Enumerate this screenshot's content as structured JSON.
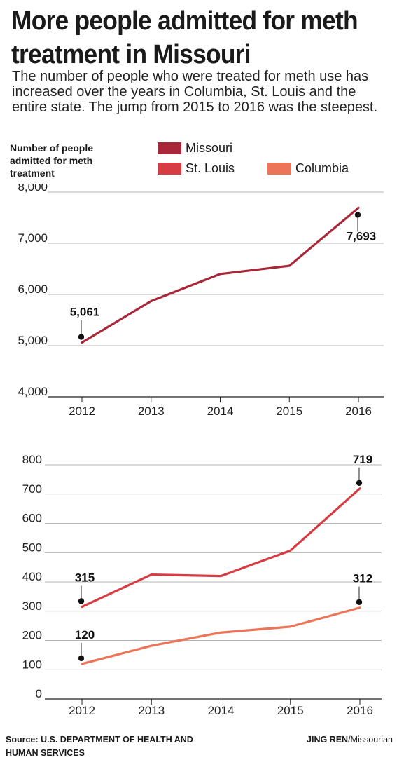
{
  "headline": "More people admitted for meth treatment in Missouri",
  "dek": "The number of people who were treated for meth use has increased over the years in Columbia, St. Louis and the entire state. The jump from 2015 to 2016 was the steepest.",
  "y_label": "Number of people admitted for meth treatment",
  "legend": [
    {
      "name": "Missouri",
      "color": "#a8283a"
    },
    {
      "name": "St. Louis",
      "color": "#d63c42"
    },
    {
      "name": "Columbia",
      "color": "#ec7458"
    }
  ],
  "source": "Source: U.S. DEPARTMENT OF HEALTH AND HUMAN SERVICES",
  "credit_name": "JING REN",
  "credit_org": "/Missourian",
  "chart_data": [
    {
      "type": "line",
      "x": [
        "2012",
        "2013",
        "2014",
        "2015",
        "2016"
      ],
      "ylim": [
        4000,
        8000
      ],
      "yticks": [
        "4,000",
        "5,000",
        "6,000",
        "7,000",
        "8,000"
      ],
      "ytick_values": [
        4000,
        5000,
        6000,
        7000,
        8000
      ],
      "ylabel": "Number of people admitted for meth treatment",
      "grid": true,
      "series": [
        {
          "name": "Missouri",
          "color": "#a8283a",
          "values": [
            5061,
            5870,
            6400,
            6560,
            7693
          ]
        }
      ],
      "annotations": [
        {
          "series": 0,
          "index": 0,
          "label": "5,061",
          "position": "above"
        },
        {
          "series": 0,
          "index": 4,
          "label": "7,693",
          "position": "below"
        }
      ]
    },
    {
      "type": "line",
      "x": [
        "2012",
        "2013",
        "2014",
        "2015",
        "2016"
      ],
      "ylim": [
        0,
        800
      ],
      "yticks": [
        "0",
        "100",
        "200",
        "300",
        "400",
        "500",
        "600",
        "700",
        "800"
      ],
      "ytick_values": [
        0,
        100,
        200,
        300,
        400,
        500,
        600,
        700,
        800
      ],
      "grid": true,
      "series": [
        {
          "name": "St. Louis",
          "color": "#d63c42",
          "values": [
            315,
            425,
            420,
            507,
            719
          ]
        },
        {
          "name": "Columbia",
          "color": "#ec7458",
          "values": [
            120,
            182,
            227,
            247,
            312
          ]
        }
      ],
      "annotations": [
        {
          "series": 0,
          "index": 0,
          "label": "315",
          "position": "above"
        },
        {
          "series": 0,
          "index": 4,
          "label": "719",
          "position": "above"
        },
        {
          "series": 1,
          "index": 0,
          "label": "120",
          "position": "above"
        },
        {
          "series": 1,
          "index": 4,
          "label": "312",
          "position": "above"
        }
      ]
    }
  ]
}
